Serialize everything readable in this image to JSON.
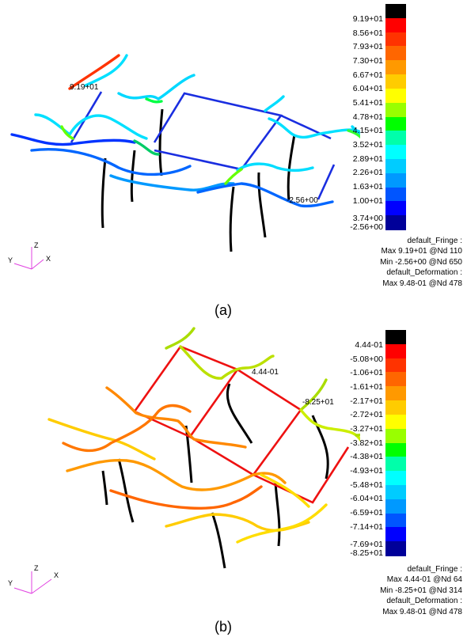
{
  "panels": [
    {
      "caption": "(a)",
      "colorbar": {
        "labels": [
          "9.19+01",
          "8.56+01",
          "7.93+01",
          "7.30+01",
          "6.67+01",
          "6.04+01",
          "5.41+01",
          "4.78+01",
          "4.15+01",
          "3.52+01",
          "2.89+01",
          "2.26+01",
          "1.63+01",
          "1.00+01",
          "3.74+00",
          "-2.56+00"
        ],
        "colors": [
          "#000000",
          "#ff0000",
          "#ff3300",
          "#ff6600",
          "#ff9900",
          "#ffcc00",
          "#ffff00",
          "#99ff00",
          "#00ff00",
          "#00ffaa",
          "#00ffff",
          "#00ccff",
          "#0099ff",
          "#0055ff",
          "#0000ff",
          "#000099"
        ]
      },
      "legend": {
        "fringe": "default_Fringe :",
        "max": "Max 9.19+01 @Nd 110",
        "min": "Min -2.56+00 @Nd 650",
        "deformation": "default_Deformation :",
        "def_max": "Max 9.48-01 @Nd 478"
      },
      "markers": {
        "max_label": "9.19+01",
        "min_label": "-2.56+00"
      },
      "axes": {
        "z": "Z",
        "y": "Y",
        "x": "X",
        "color": "#e040e0"
      }
    },
    {
      "caption": "(b)",
      "colorbar": {
        "labels": [
          "4.44-01",
          "-5.08+00",
          "-1.06+01",
          "-1.61+01",
          "-2.17+01",
          "-2.72+01",
          "-3.27+01",
          "-3.82+01",
          "-4.38+01",
          "-4.93+01",
          "-5.48+01",
          "-6.04+01",
          "-6.59+01",
          "-7.14+01",
          "-7.69+01",
          "-8.25+01"
        ],
        "colors": [
          "#000000",
          "#ff0000",
          "#ff3300",
          "#ff6600",
          "#ff9900",
          "#ffcc00",
          "#ffff00",
          "#99ff00",
          "#00ff00",
          "#00ffaa",
          "#00ffff",
          "#00ccff",
          "#0099ff",
          "#0055ff",
          "#0000ff",
          "#000099"
        ]
      },
      "legend": {
        "fringe": "default_Fringe :",
        "max": "Max 4.44-01 @Nd 64",
        "min": "Min -8.25+01 @Nd 314",
        "deformation": "default_Deformation :",
        "def_max": "Max 9.48-01 @Nd 478"
      },
      "markers": {
        "max_label": "4.44-01",
        "min_label": "-8.25+01"
      },
      "axes": {
        "z": "Z",
        "y": "Y",
        "x": "X",
        "color": "#e040e0"
      }
    }
  ]
}
